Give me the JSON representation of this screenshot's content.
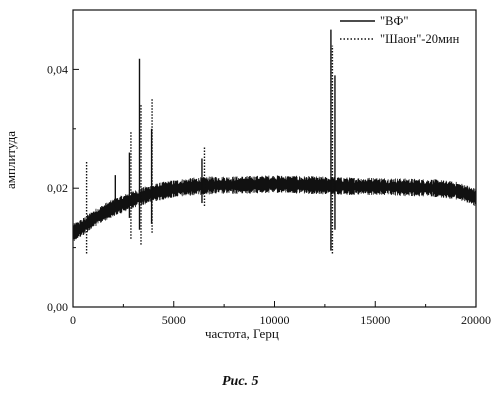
{
  "chart_data": {
    "type": "line",
    "title": "",
    "xlabel": "частота, Герц",
    "ylabel": "амплитуда",
    "xlim": [
      0,
      20000
    ],
    "ylim": [
      0,
      0.05
    ],
    "xticks": [
      0,
      5000,
      10000,
      15000,
      20000
    ],
    "xtick_labels": [
      "0",
      "5000",
      "10000",
      "15000",
      "20000"
    ],
    "yticks": [
      0,
      0.02,
      0.04
    ],
    "ytick_labels": [
      "0,00",
      "0,02",
      "0,04"
    ],
    "grid": false,
    "legend_position": "top-right",
    "caption": "Рис. 5",
    "series": [
      {
        "name": "\"ВФ\"",
        "style": "solid",
        "baseline": [
          [
            0,
            0.0125
          ],
          [
            500,
            0.0135
          ],
          [
            1000,
            0.0148
          ],
          [
            1500,
            0.0158
          ],
          [
            2000,
            0.0167
          ],
          [
            2500,
            0.0174
          ],
          [
            3000,
            0.0181
          ],
          [
            3500,
            0.0187
          ],
          [
            4000,
            0.0192
          ],
          [
            4500,
            0.0196
          ],
          [
            5000,
            0.0199
          ],
          [
            6000,
            0.0203
          ],
          [
            7000,
            0.0205
          ],
          [
            8000,
            0.0205
          ],
          [
            9000,
            0.0206
          ],
          [
            10000,
            0.0207
          ],
          [
            11000,
            0.0206
          ],
          [
            12000,
            0.0205
          ],
          [
            13000,
            0.0204
          ],
          [
            14000,
            0.0203
          ],
          [
            15000,
            0.0203
          ],
          [
            16000,
            0.0202
          ],
          [
            17000,
            0.0201
          ],
          [
            18000,
            0.02
          ],
          [
            19000,
            0.0196
          ],
          [
            19500,
            0.0191
          ],
          [
            20000,
            0.0184
          ]
        ],
        "noise": 0.001,
        "spikes": [
          [
            2100,
            0.0222,
            0.0168
          ],
          [
            2800,
            0.026,
            0.015
          ],
          [
            3300,
            0.0418,
            0.013
          ],
          [
            3900,
            0.03,
            0.014
          ],
          [
            6400,
            0.025,
            0.0175
          ],
          [
            12800,
            0.0467,
            0.0095
          ],
          [
            13000,
            0.039,
            0.013
          ]
        ]
      },
      {
        "name": "\"Шаон\"-20мин",
        "style": "dotted",
        "spikes": [
          [
            600,
            0.0245,
            0.009
          ],
          [
            2800,
            0.0295,
            0.0115
          ],
          [
            3300,
            0.034,
            0.0105
          ],
          [
            3850,
            0.0352,
            0.0125
          ],
          [
            6450,
            0.027,
            0.017
          ],
          [
            12800,
            0.044,
            0.009
          ]
        ]
      }
    ]
  }
}
